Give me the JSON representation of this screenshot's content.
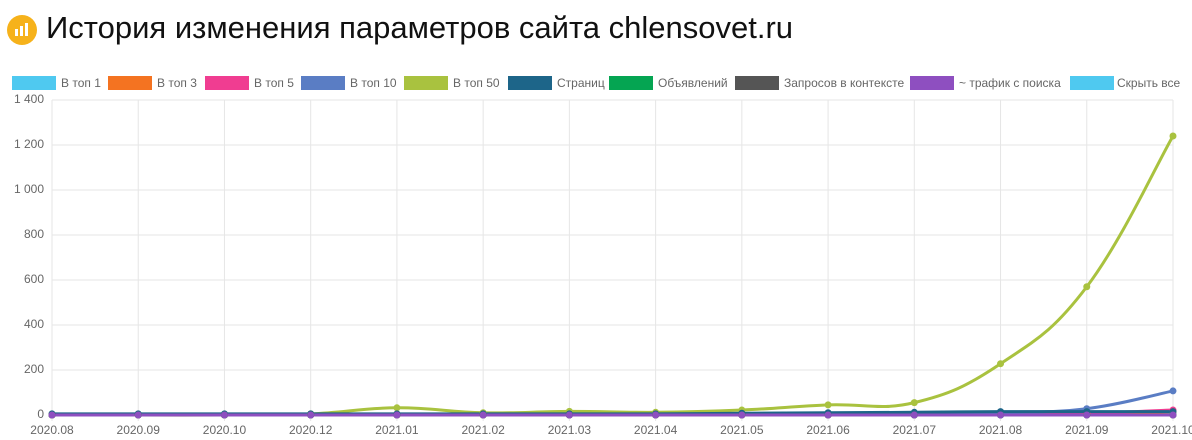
{
  "chart_data": {
    "type": "line",
    "title": "История изменения параметров сайта chlensovet.ru",
    "categories": [
      "2020.08",
      "2020.09",
      "2020.10",
      "2020.12",
      "2021.01",
      "2021.02",
      "2021.03",
      "2021.04",
      "2021.05",
      "2021.06",
      "2021.07",
      "2021.08",
      "2021.09",
      "2021.10"
    ],
    "series": [
      {
        "name": "В топ 1",
        "color": "#4fc9f0",
        "values": [
          0,
          0,
          0,
          0,
          0,
          0,
          0,
          0,
          0,
          0,
          0,
          0,
          1,
          2
        ]
      },
      {
        "name": "В топ 3",
        "color": "#f47321",
        "values": [
          0,
          0,
          0,
          0,
          0,
          0,
          0,
          0,
          0,
          0,
          0,
          2,
          5,
          15
        ]
      },
      {
        "name": "В топ 5",
        "color": "#f03d91",
        "values": [
          0,
          0,
          0,
          0,
          0,
          0,
          0,
          0,
          0,
          0,
          0,
          3,
          8,
          22
        ]
      },
      {
        "name": "В топ 10",
        "color": "#5a7dc4",
        "values": [
          0,
          0,
          0,
          0,
          2,
          2,
          2,
          2,
          3,
          5,
          5,
          12,
          28,
          107
        ]
      },
      {
        "name": "В топ 50",
        "color": "#a9c23f",
        "values": [
          0,
          0,
          0,
          5,
          32,
          10,
          16,
          12,
          22,
          45,
          55,
          228,
          570,
          1240
        ]
      },
      {
        "name": "Страниц",
        "color": "#1d6589",
        "values": [
          5,
          5,
          5,
          5,
          5,
          5,
          5,
          5,
          8,
          10,
          12,
          15,
          15,
          15
        ]
      },
      {
        "name": "Объявлений",
        "color": "#05a552",
        "values": [
          0,
          0,
          0,
          0,
          0,
          0,
          0,
          0,
          0,
          0,
          0,
          0,
          0,
          0
        ]
      },
      {
        "name": "Запросов в контексте",
        "color": "#555555",
        "values": [
          0,
          0,
          0,
          0,
          0,
          0,
          0,
          0,
          0,
          0,
          0,
          0,
          0,
          0
        ]
      },
      {
        "name": "~ трафик с поиска",
        "color": "#8e4fc0",
        "values": [
          0,
          0,
          0,
          0,
          0,
          0,
          0,
          0,
          0,
          0,
          0,
          0,
          0,
          0
        ]
      }
    ],
    "hide_all": {
      "label": "Скрыть все",
      "color": "#4fc9f0"
    },
    "ylim": [
      0,
      1400
    ],
    "yticks": [
      0,
      200,
      400,
      600,
      800,
      {
        "value": 1000,
        "label": "1 000"
      },
      {
        "value": 1200,
        "label": "1 200"
      },
      {
        "value": 1400,
        "label": "1 400"
      }
    ],
    "grid": true
  }
}
